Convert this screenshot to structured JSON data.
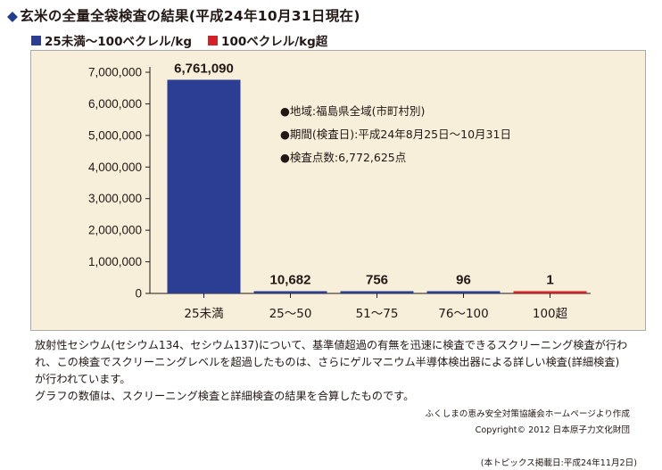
{
  "header": {
    "title": "玄米の全量全袋検査の結果(平成24年10月31日現在)"
  },
  "colors": {
    "blue": "#2c3e93",
    "red": "#d81f26",
    "panel": "#f7efda"
  },
  "legend": [
    {
      "label": "25未満〜100ベクレル/kg",
      "color": "#2c3e93"
    },
    {
      "label": "100ベクレル/kg超",
      "color": "#d81f26"
    }
  ],
  "info": {
    "line1": "●地域:福島県全域(市町村別)",
    "line2": "●期間(検査日):平成24年8月25日〜10月31日",
    "line3": "●検査点数:6,772,625点"
  },
  "chart_data": {
    "type": "bar",
    "categories": [
      "25未満",
      "25〜50",
      "51〜75",
      "76〜100",
      "100超"
    ],
    "values": [
      6761090,
      10682,
      756,
      96,
      1
    ],
    "value_labels": [
      "6,761,090",
      "10,682",
      "756",
      "96",
      "1"
    ],
    "bar_colors": [
      "#2c3e93",
      "#2c3e93",
      "#2c3e93",
      "#2c3e93",
      "#d81f26"
    ],
    "ylim": [
      0,
      7000000
    ],
    "yticks": [
      0,
      1000000,
      2000000,
      3000000,
      4000000,
      5000000,
      6000000,
      7000000
    ],
    "ytick_labels": [
      "0",
      "1,000,000",
      "2,000,000",
      "3,000,000",
      "4,000,000",
      "5,000,000",
      "6,000,000",
      "7,000,000"
    ],
    "grid": false
  },
  "notes": {
    "body": "放射性セシウム(セシウム134、セシウム137)について、基準値超過の有無を迅速に検査できるスクリーニング検査が行われ、この検査でスクリーニングレベルを超過したものは、さらにゲルマニウム半導体検出器による詳しい検査(詳細検査)が行われています。",
    "sum": "グラフの数値は、スクリーニング検査と詳細検査の結果を合算したものです。",
    "source": "ふくしまの恵み安全対策協議会ホームページより作成",
    "copyright": "Copyright© 2012 日本原子力文化財団",
    "published": "(本トピックス掲載日:平成24年11月2日)"
  }
}
